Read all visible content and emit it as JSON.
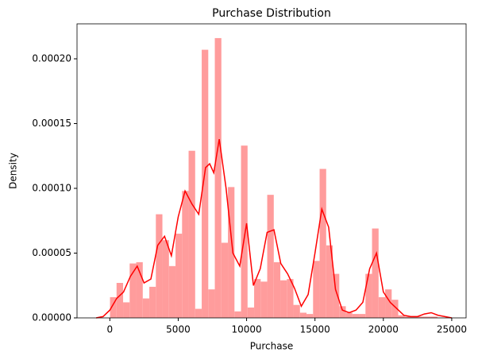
{
  "chart_data": {
    "type": "histogram",
    "title": "Purchase Distribution",
    "xlabel": "Purchase",
    "ylabel": "Density",
    "bins": [
      12,
      491,
      970,
      1449,
      1928,
      2407,
      2886,
      3365,
      3844,
      4323,
      4802,
      5281,
      5760,
      6239,
      6718,
      7197,
      7676,
      8155,
      8634,
      9113,
      9592,
      10071,
      10550,
      11029,
      11508,
      11987,
      12466,
      12945,
      13424,
      13903,
      14382,
      14861,
      15340,
      15819,
      16298,
      16777,
      17256,
      17735,
      18214,
      18693,
      19172,
      19651,
      20130,
      20609,
      21088,
      21567,
      22046,
      22525,
      23004,
      23483,
      23962
    ],
    "values": [
      1.6e-05,
      2.7e-05,
      1.2e-05,
      4.2e-05,
      4.3e-05,
      1.5e-05,
      2.4e-05,
      8e-05,
      6e-05,
      4e-05,
      6.5e-05,
      9.8e-05,
      0.000129,
      7e-06,
      0.000207,
      2.2e-05,
      0.000216,
      5.8e-05,
      0.000101,
      5e-06,
      0.000133,
      8e-06,
      3e-05,
      2.8e-05,
      9.5e-05,
      4.3e-05,
      2.9e-05,
      3e-05,
      1e-05,
      4e-06,
      3e-06,
      4.4e-05,
      0.000115,
      5.6e-05,
      3.4e-05,
      9e-06,
      4e-06,
      3e-06,
      3e-06,
      3.4e-05,
      6.9e-05,
      1.6e-05,
      2.2e-05,
      1.4e-05,
      2e-06,
      1e-06,
      1e-06,
      1e-06,
      1e-06,
      1e-06
    ],
    "color": "#ff9c9c",
    "kde": {
      "color": "#ff0000",
      "x": [
        -1000,
        -500,
        0,
        500,
        1000,
        1500,
        2000,
        2500,
        3000,
        3500,
        4000,
        4500,
        5000,
        5500,
        6000,
        6500,
        7000,
        7300,
        7600,
        8000,
        8500,
        9000,
        9500,
        10000,
        10500,
        11000,
        11500,
        12000,
        12500,
        13000,
        13500,
        14000,
        14500,
        15000,
        15500,
        16000,
        16500,
        17000,
        17500,
        18000,
        18500,
        19000,
        19500,
        20000,
        20500,
        21000,
        21500,
        22000,
        22500,
        23000,
        23500,
        24000,
        24500,
        25000
      ],
      "y": [
        0,
        1e-06,
        6e-06,
        1.5e-05,
        2e-05,
        3.2e-05,
        4e-05,
        2.7e-05,
        3e-05,
        5.6e-05,
        6.3e-05,
        4.8e-05,
        7.8e-05,
        9.8e-05,
        8.8e-05,
        8e-05,
        0.000116,
        0.000119,
        0.000112,
        0.000138,
        0.0001,
        5e-05,
        4e-05,
        7.3e-05,
        2.5e-05,
        3.8e-05,
        6.6e-05,
        6.8e-05,
        4.2e-05,
        3.4e-05,
        2.3e-05,
        9e-06,
        1.8e-05,
        5e-05,
        8.4e-05,
        7e-05,
        2.2e-05,
        6e-06,
        4e-06,
        6e-06,
        1.2e-05,
        3.8e-05,
        5e-05,
        2e-05,
        1.2e-05,
        7e-06,
        2e-06,
        1e-06,
        1e-06,
        3e-06,
        4e-06,
        2e-06,
        1e-06,
        0
      ]
    },
    "xlim": [
      -2400,
      26050
    ],
    "ylim": [
      0,
      0.000227
    ],
    "xticks": [
      0,
      5000,
      10000,
      15000,
      20000,
      25000
    ],
    "yticks": [
      {
        "value": 0,
        "label": "0.00000"
      },
      {
        "value": 5e-05,
        "label": "0.00005"
      },
      {
        "value": 0.0001,
        "label": "0.00010"
      },
      {
        "value": 0.00015,
        "label": "0.00015"
      },
      {
        "value": 0.0002,
        "label": "0.00020"
      }
    ]
  }
}
